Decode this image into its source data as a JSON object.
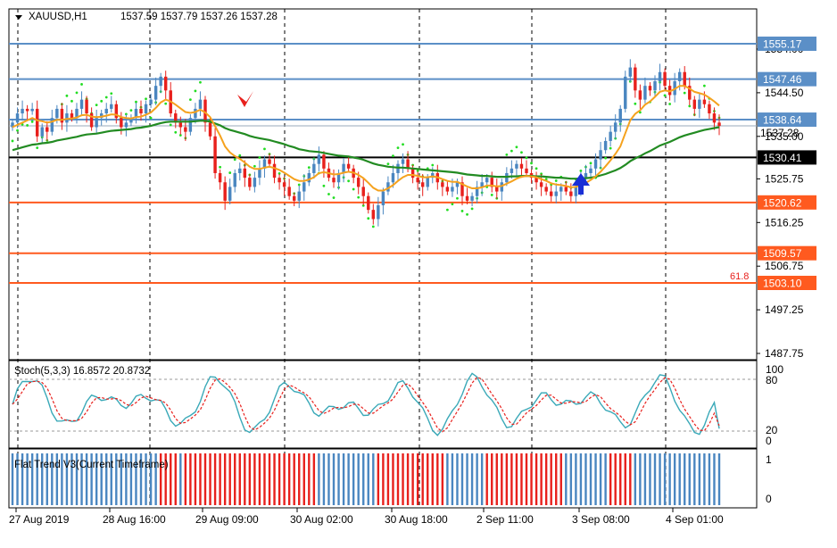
{
  "header": {
    "menu_icon": "triangle-down-icon",
    "symbol": "XAUUSD,H1",
    "ohlc": "1537.59 1537.79 1537.26 1537.28"
  },
  "price_axis": {
    "ticks": [
      "1554.00",
      "1544.50",
      "1535.00",
      "1525.75",
      "1516.25",
      "1506.75",
      "1497.25",
      "1487.75"
    ],
    "hidden_ticks": [
      "1537.28"
    ]
  },
  "levels": [
    {
      "price": 1555.17,
      "label": "1555.17",
      "color": "#5b8fc7"
    },
    {
      "price": 1547.46,
      "label": "1547.46",
      "color": "#5b8fc7"
    },
    {
      "price": 1538.64,
      "label": "1538.64",
      "color": "#5b8fc7"
    },
    {
      "price": 1530.41,
      "label": "1530.41",
      "color": "#000000"
    },
    {
      "price": 1520.62,
      "label": "1520.62",
      "color": "#ff5a1f"
    },
    {
      "price": 1509.57,
      "label": "1509.57",
      "color": "#ff5a1f"
    },
    {
      "price": 1503.1,
      "label": "1503.10",
      "color": "#ff5a1f"
    }
  ],
  "fib_label": "61.8",
  "stoch": {
    "title": "Stoch(5,3,3) 16.8572 20.8732",
    "ticks": [
      "100",
      "80",
      "20",
      "0"
    ]
  },
  "flat_trend": {
    "title": "Flat Trend V3(Current Timeframe)",
    "ticks": [
      "1",
      "0"
    ]
  },
  "time_axis": [
    "27 Aug 2019",
    "28 Aug 16:00",
    "29 Aug 09:00",
    "30 Aug 02:00",
    "30 Aug 18:00",
    "2 Sep 11:00",
    "3 Sep 08:00",
    "4 Sep 01:00"
  ],
  "colors": {
    "bull": "#4a86c0",
    "bear": "#e8201c",
    "ma_fast": "#f5a21e",
    "ma_slow": "#228b22",
    "sar": "#22dd22",
    "stoch_main": "#3aa9b8",
    "stoch_signal": "#e8201c",
    "trend_up": "#4a86c0",
    "trend_down": "#e8201c"
  },
  "chart_data": {
    "type": "candlestick",
    "symbol": "XAUUSD",
    "timeframe": "H1",
    "ylim": [
      1485,
      1560
    ],
    "closes": [
      1538,
      1540,
      1541,
      1540.5,
      1541,
      1535,
      1537,
      1536,
      1539,
      1541,
      1538,
      1540,
      1539,
      1541,
      1543,
      1540,
      1537,
      1539,
      1540,
      1541,
      1542,
      1539,
      1537,
      1538,
      1539,
      1541,
      1540,
      1542,
      1543,
      1546,
      1548,
      1545,
      1540,
      1538,
      1537,
      1536,
      1539,
      1541,
      1543,
      1538,
      1535,
      1527,
      1525,
      1521,
      1524,
      1527,
      1528,
      1526,
      1524,
      1526,
      1528,
      1530,
      1529,
      1526,
      1525,
      1524,
      1522,
      1521,
      1523,
      1525,
      1527,
      1529,
      1531,
      1528,
      1526,
      1525,
      1527,
      1529,
      1528,
      1526,
      1524,
      1522,
      1519,
      1517,
      1520,
      1523,
      1525,
      1527,
      1529,
      1530,
      1528,
      1526,
      1525,
      1524,
      1526,
      1527,
      1525,
      1524,
      1523,
      1524,
      1525,
      1522,
      1521,
      1522,
      1524,
      1525,
      1526,
      1524,
      1523,
      1525,
      1527,
      1528,
      1529,
      1528,
      1527,
      1526,
      1525,
      1524,
      1523,
      1522,
      1523,
      1524,
      1523,
      1522,
      1524,
      1526,
      1527,
      1528,
      1530,
      1532,
      1534,
      1536,
      1538,
      1541,
      1548,
      1550,
      1545,
      1543,
      1546,
      1545,
      1547,
      1549,
      1546,
      1544,
      1547,
      1549,
      1546,
      1543,
      1541,
      1543,
      1542,
      1540,
      1538,
      1537.28
    ],
    "ma_fast": [
      1537,
      1537.5,
      1538,
      1538.5,
      1539,
      1538.5,
      1538.3,
      1538,
      1538.2,
      1538.6,
      1538.6,
      1538.8,
      1538.9,
      1539.1,
      1539.6,
      1539.7,
      1539.3,
      1539.2,
      1539.3,
      1539.5,
      1539.8,
      1539.7,
      1539.2,
      1539,
      1538.9,
      1539.2,
      1539.3,
      1539.7,
      1540.2,
      1541.2,
      1542.4,
      1543,
      1542.6,
      1541.9,
      1541.1,
      1540.3,
      1540.1,
      1540.3,
      1540.8,
      1540.2,
      1539.2,
      1537.2,
      1535.2,
      1532.8,
      1531.5,
      1530.7,
      1530.1,
      1529.3,
      1528.4,
      1527.9,
      1527.9,
      1528.2,
      1528.4,
      1528.1,
      1527.7,
      1527.1,
      1526.4,
      1525.7,
      1525.3,
      1525.3,
      1525.6,
      1526.1,
      1527,
      1527.2,
      1527,
      1526.7,
      1526.8,
      1527.1,
      1527.3,
      1527.1,
      1526.6,
      1525.9,
      1524.9,
      1523.8,
      1523.2,
      1523.2,
      1523.7,
      1524.4,
      1525.3,
      1526.1,
      1526.6,
      1526.6,
      1526.4,
      1526.1,
      1526.1,
      1526.3,
      1526.1,
      1525.7,
      1525.3,
      1525.1,
      1525.1,
      1524.6,
      1524.1,
      1523.7,
      1523.7,
      1523.9,
      1524.3,
      1524.3,
      1524.1,
      1524.2,
      1524.7,
      1525.2,
      1525.8,
      1526.2,
      1526.4,
      1526.3,
      1526.1,
      1525.7,
      1525.3,
      1524.8,
      1524.5,
      1524.4,
      1524.2,
      1523.9,
      1524,
      1524.4,
      1524.9,
      1525.5,
      1526.3,
      1527.3,
      1528.5,
      1529.8,
      1531.2,
      1532.8,
      1535.7,
      1538.5,
      1539.9,
      1540.7,
      1541.9,
      1542.6,
      1543.6,
      1544.7,
      1545,
      1544.8,
      1545.3,
      1546,
      1546,
      1545.4,
      1544.7,
      1544.4,
      1544.1,
      1543.4,
      1542.6,
      1541.7
    ],
    "ma_slow": [
      1532,
      1532.3,
      1532.6,
      1532.9,
      1533.2,
      1533.3,
      1533.5,
      1533.6,
      1533.8,
      1534.1,
      1534.3,
      1534.5,
      1534.7,
      1534.9,
      1535.2,
      1535.4,
      1535.5,
      1535.6,
      1535.8,
      1536,
      1536.2,
      1536.3,
      1536.4,
      1536.5,
      1536.6,
      1536.8,
      1536.9,
      1537.1,
      1537.3,
      1537.6,
      1537.9,
      1538.1,
      1538.2,
      1538.2,
      1538.2,
      1538.2,
      1538.2,
      1538.3,
      1538.4,
      1538.4,
      1538.2,
      1537.8,
      1537.4,
      1536.8,
      1536.4,
      1536.1,
      1535.8,
      1535.5,
      1535.1,
      1534.8,
      1534.6,
      1534.4,
      1534.2,
      1533.9,
      1533.6,
      1533.3,
      1532.9,
      1532.6,
      1532.2,
      1532,
      1531.8,
      1531.7,
      1531.6,
      1531.4,
      1531.2,
      1531,
      1530.8,
      1530.7,
      1530.6,
      1530.4,
      1530.2,
      1529.9,
      1529.5,
      1529.1,
      1528.8,
      1528.6,
      1528.4,
      1528.3,
      1528.2,
      1528.2,
      1528.1,
      1528,
      1527.9,
      1527.8,
      1527.7,
      1527.6,
      1527.5,
      1527.4,
      1527.3,
      1527.2,
      1527.1,
      1526.9,
      1526.7,
      1526.6,
      1526.5,
      1526.4,
      1526.4,
      1526.3,
      1526.2,
      1526.2,
      1526.2,
      1526.3,
      1526.3,
      1526.4,
      1526.4,
      1526.4,
      1526.3,
      1526.3,
      1526.2,
      1526.1,
      1526,
      1526,
      1525.9,
      1525.8,
      1525.8,
      1525.8,
      1525.9,
      1526,
      1526.2,
      1526.5,
      1526.8,
      1527.2,
      1527.6,
      1528.1,
      1528.8,
      1529.6,
      1530.2,
      1530.7,
      1531.3,
      1531.8,
      1532.4,
      1533,
      1533.4,
      1533.8,
      1534.3,
      1534.8,
      1535.2,
      1535.5,
      1535.8,
      1536.1,
      1536.4,
      1536.6,
      1536.8,
      1537
    ]
  }
}
